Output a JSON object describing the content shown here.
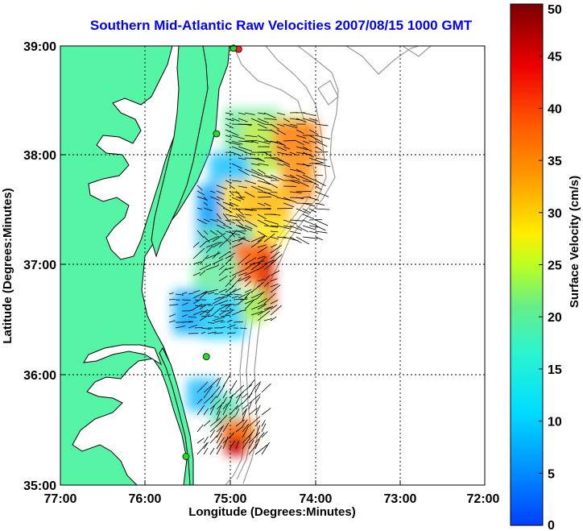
{
  "title": "Southern Mid-Atlantic Raw Velocities 2007/08/15 1000 GMT",
  "x_axis_label": "Longitude (Degrees:Minutes)",
  "y_axis_label": "Latitude (Degrees:Minutes)",
  "x_ticks": [
    "77:00",
    "76:00",
    "75:00",
    "74:00",
    "73:00",
    "72:00"
  ],
  "y_ticks": [
    "39:00",
    "38:00",
    "37:00",
    "36:00",
    "35:00"
  ],
  "colorbar": {
    "label": "Surface Velocity (cm/s)",
    "ticks": [
      "0",
      "5",
      "10",
      "15",
      "20",
      "25",
      "30",
      "35",
      "40",
      "45",
      "50"
    ],
    "min": 0,
    "max": 50
  },
  "colors": {
    "land": "#55f5a5",
    "water": "#ffffff",
    "bathymetry": "#9a9a9a",
    "title": "#0000ff",
    "site_active": "#22dd22",
    "site_inactive": "#ff2222"
  },
  "map_extent": {
    "lon_min": -77,
    "lon_max": -72,
    "lat_min": 35,
    "lat_max": 39
  },
  "hf_radar_sites": [
    {
      "lon": -74.9,
      "lat": 38.97,
      "status": "inactive"
    },
    {
      "lon": -74.96,
      "lat": 38.98,
      "status": "active"
    },
    {
      "lon": -75.16,
      "lat": 38.2,
      "status": "active"
    },
    {
      "lon": -75.28,
      "lat": 36.17,
      "status": "active"
    },
    {
      "lon": -75.52,
      "lat": 35.26,
      "status": "active"
    }
  ]
}
